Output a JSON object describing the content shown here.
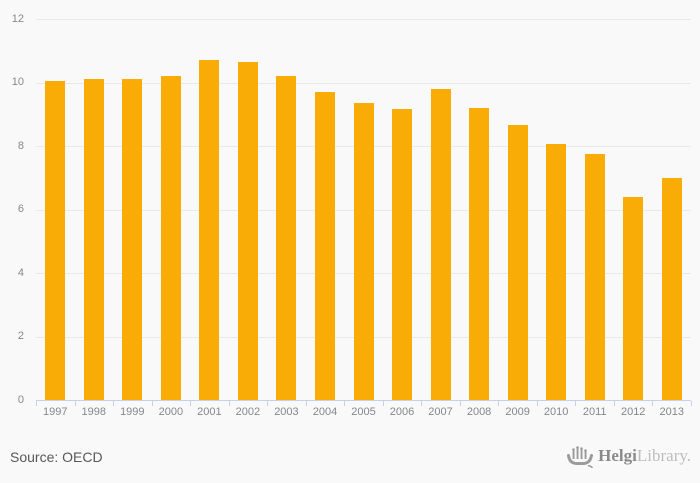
{
  "colors": {
    "background": "#F9F9F9",
    "bar": "#F9AC05",
    "grid_line": "#E9E9E9",
    "axis_line": "#C7D0E9",
    "axis_text": "#85878A",
    "source_text": "#58585A",
    "brand_dark": "#8A8A8A",
    "brand_light": "#BDBDBD",
    "brand_icon": "#9B9B9B"
  },
  "chart_data": {
    "type": "bar",
    "title": "",
    "xlabel": "",
    "ylabel": "",
    "categories": [
      "1997",
      "1998",
      "1999",
      "2000",
      "2001",
      "2002",
      "2003",
      "2004",
      "2005",
      "2006",
      "2007",
      "2008",
      "2009",
      "2010",
      "2011",
      "2012",
      "2013"
    ],
    "values": [
      10.05,
      10.1,
      10.1,
      10.2,
      10.7,
      10.65,
      10.2,
      9.7,
      9.35,
      9.15,
      9.8,
      9.2,
      8.65,
      8.05,
      7.75,
      6.4,
      7.0
    ],
    "ylim": [
      0,
      12
    ],
    "yticks": [
      0,
      2,
      4,
      6,
      8,
      10,
      12
    ],
    "grid": "horizontal",
    "legend_position": "none"
  },
  "footer": {
    "source_label": "Source: OECD"
  },
  "branding": {
    "icon": "helgi-ship-icon",
    "name_bold": "Helgi",
    "name_light": "Library."
  }
}
